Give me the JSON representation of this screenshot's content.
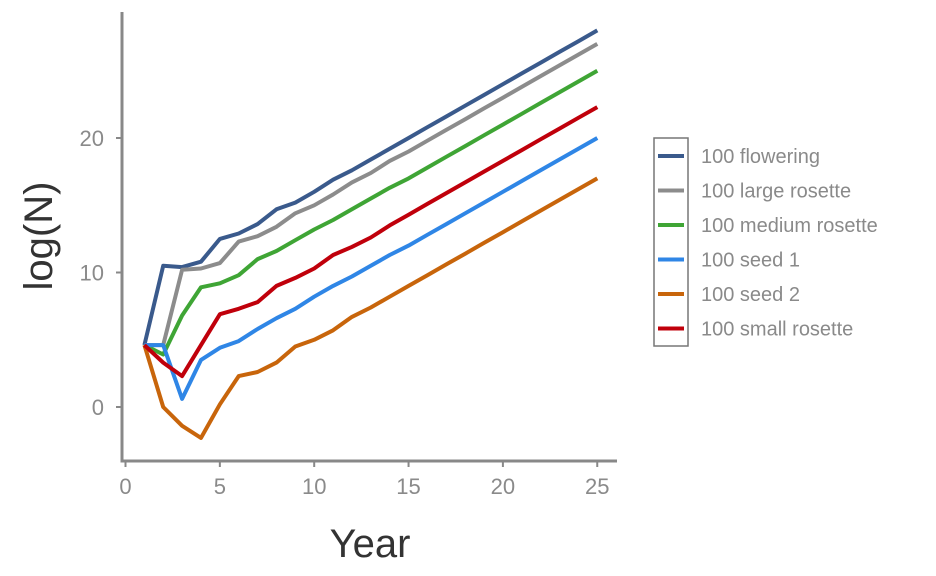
{
  "chart_data": {
    "type": "line",
    "xlabel": "Year",
    "ylabel": "log(N)",
    "xlim": [
      0,
      26
    ],
    "ylim": [
      -4,
      29
    ],
    "xticks": [
      0,
      5,
      10,
      15,
      20,
      25
    ],
    "yticks": [
      0,
      10,
      20
    ],
    "legend_position": "right",
    "grid": false,
    "x": [
      1,
      2,
      3,
      4,
      5,
      6,
      7,
      8,
      9,
      10,
      11,
      12,
      13,
      14,
      15,
      16,
      17,
      18,
      19,
      20,
      21,
      22,
      23,
      24,
      25
    ],
    "series": [
      {
        "name": "100 flowering",
        "color": "#3a5a8c",
        "values": [
          4.6,
          10.5,
          10.4,
          10.8,
          12.5,
          12.9,
          13.6,
          14.7,
          15.2,
          16.0,
          16.9,
          17.6,
          18.4,
          19.2,
          20.0,
          20.8,
          21.6,
          22.4,
          23.2,
          24.0,
          24.8,
          25.6,
          26.4,
          27.2,
          28.0
        ]
      },
      {
        "name": "100 large rosette",
        "color": "#8c8c8c",
        "values": [
          4.6,
          4.6,
          10.2,
          10.3,
          10.7,
          12.3,
          12.7,
          13.4,
          14.4,
          15.0,
          15.8,
          16.7,
          17.4,
          18.3,
          19.0,
          19.8,
          20.6,
          21.4,
          22.2,
          23.0,
          23.8,
          24.6,
          25.4,
          26.2,
          27.0
        ]
      },
      {
        "name": "100 medium rosette",
        "color": "#3fa535",
        "values": [
          4.6,
          3.9,
          6.8,
          8.9,
          9.2,
          9.8,
          11.0,
          11.6,
          12.4,
          13.2,
          13.9,
          14.7,
          15.5,
          16.3,
          17.0,
          17.8,
          18.6,
          19.4,
          20.2,
          21.0,
          21.8,
          22.6,
          23.4,
          24.2,
          25.0
        ]
      },
      {
        "name": "100 seed 1",
        "color": "#2f86e6",
        "values": [
          4.6,
          4.6,
          0.6,
          3.5,
          4.4,
          4.9,
          5.8,
          6.6,
          7.3,
          8.2,
          9.0,
          9.7,
          10.5,
          11.3,
          12.0,
          12.8,
          13.6,
          14.4,
          15.2,
          16.0,
          16.8,
          17.6,
          18.4,
          19.2,
          20.0
        ]
      },
      {
        "name": "100 seed 2",
        "color": "#c8650b",
        "values": [
          4.6,
          0.0,
          -1.4,
          -2.3,
          0.2,
          2.3,
          2.6,
          3.3,
          4.5,
          5.0,
          5.7,
          6.7,
          7.4,
          8.2,
          9.0,
          9.8,
          10.6,
          11.4,
          12.2,
          13.0,
          13.8,
          14.6,
          15.4,
          16.2,
          17.0
        ]
      },
      {
        "name": "100 small rosette",
        "color": "#c0000b",
        "values": [
          4.6,
          3.3,
          2.3,
          4.6,
          6.9,
          7.3,
          7.8,
          9.0,
          9.6,
          10.3,
          11.3,
          11.9,
          12.6,
          13.5,
          14.3,
          15.1,
          15.9,
          16.7,
          17.5,
          18.3,
          19.1,
          19.9,
          20.7,
          21.5,
          22.3
        ]
      }
    ]
  }
}
